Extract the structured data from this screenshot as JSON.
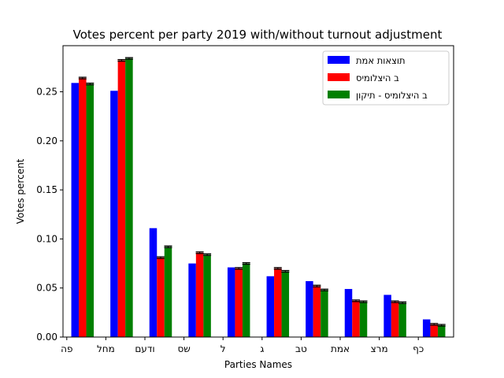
{
  "chart_data": {
    "type": "bar",
    "title": "Votes percent per party 2019 with/without turnout adjustment",
    "xlabel": "Parties Names",
    "ylabel": "Votes percent",
    "ylim": [
      0,
      0.297
    ],
    "yticks": [
      "0.00",
      "0.05",
      "0.10",
      "0.15",
      "0.20",
      "0.25"
    ],
    "grid": false,
    "legend_position": "top-right",
    "categories": [
      "פה",
      "מחל",
      "ודעם",
      "שס",
      "ל",
      "ג",
      "טב",
      "אמת",
      "מרצ",
      "כף"
    ],
    "series": [
      {
        "name": "תוצאות אמת",
        "color": "#0000ff",
        "values": [
          0.259,
          0.251,
          0.111,
          0.075,
          0.071,
          0.062,
          0.057,
          0.049,
          0.043,
          0.018
        ],
        "errors": null
      },
      {
        "name": "ב היצלומיס",
        "color": "#ff0000",
        "values": [
          0.264,
          0.282,
          0.081,
          0.086,
          0.07,
          0.07,
          0.052,
          0.037,
          0.036,
          0.013
        ],
        "errors": [
          0.0008,
          0.0008,
          0.0008,
          0.0008,
          0.0008,
          0.0008,
          0.0008,
          0.0008,
          0.0008,
          0.0008
        ]
      },
      {
        "name": "ב היצלומיס - תיקון",
        "color": "#008000",
        "values": [
          0.258,
          0.284,
          0.092,
          0.084,
          0.075,
          0.067,
          0.048,
          0.036,
          0.035,
          0.012
        ],
        "errors": [
          0.0008,
          0.0008,
          0.0008,
          0.0008,
          0.0008,
          0.0008,
          0.0008,
          0.0008,
          0.0008,
          0.0008
        ]
      }
    ]
  }
}
